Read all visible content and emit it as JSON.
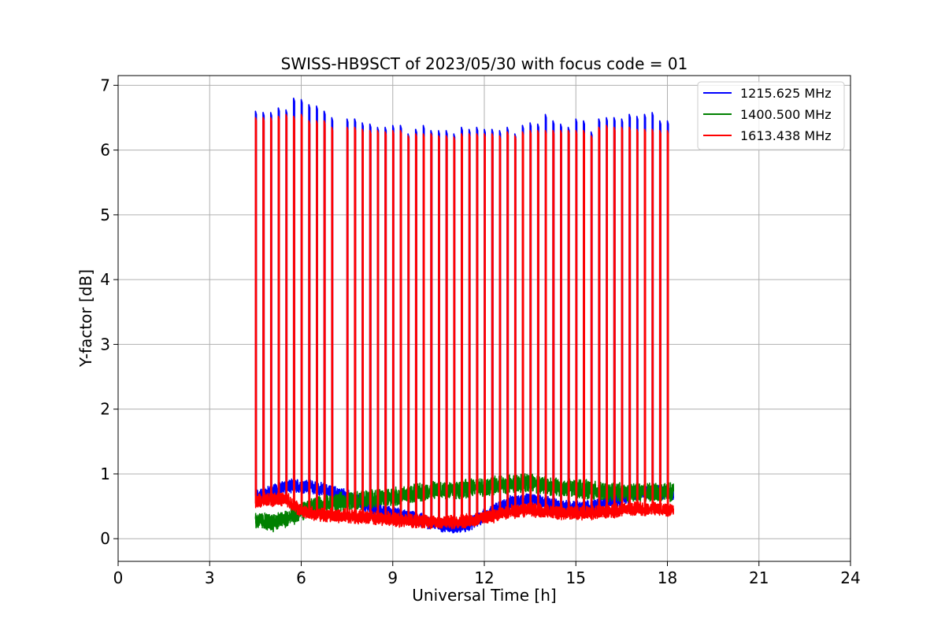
{
  "chart_data": {
    "type": "line",
    "title": "SWISS-HB9SCT of 2023/05/30 with focus code = 01",
    "xlabel": "Universal Time [h]",
    "ylabel": "Y-factor [dB]",
    "xlim": [
      0,
      24
    ],
    "ylim": [
      -0.35,
      7.15
    ],
    "xticks": [
      0,
      3,
      6,
      9,
      12,
      15,
      18,
      21,
      24
    ],
    "xtick_labels": [
      "0",
      "3",
      "6",
      "9",
      "12",
      "15",
      "18",
      "21",
      "24"
    ],
    "yticks": [
      0,
      1,
      2,
      3,
      4,
      5,
      6,
      7
    ],
    "ytick_labels": [
      "0",
      "1",
      "2",
      "3",
      "4",
      "5",
      "6",
      "7"
    ],
    "grid": true,
    "legend_position": "top-right",
    "series": [
      {
        "name": "1215.625 MHz",
        "color": "#0000ff",
        "x": [
          4.5,
          5.0,
          5.5,
          6.0,
          6.5,
          7.0,
          7.5,
          8.0,
          8.5,
          9.0,
          9.5,
          10.0,
          10.5,
          11.0,
          11.5,
          12.0,
          12.5,
          13.0,
          13.5,
          14.0,
          14.5,
          15.0,
          15.5,
          16.0,
          16.5,
          17.0,
          17.5,
          18.0,
          18.2
        ],
        "y": [
          0.65,
          0.72,
          0.8,
          0.82,
          0.78,
          0.72,
          0.65,
          0.55,
          0.45,
          0.38,
          0.33,
          0.28,
          0.22,
          0.18,
          0.22,
          0.35,
          0.48,
          0.58,
          0.6,
          0.55,
          0.5,
          0.48,
          0.5,
          0.55,
          0.62,
          0.7,
          0.72,
          0.72,
          0.7
        ]
      },
      {
        "name": "1400.500 MHz",
        "color": "#008000",
        "x": [
          4.5,
          5.0,
          5.5,
          6.0,
          6.5,
          7.0,
          7.5,
          8.0,
          8.5,
          9.0,
          9.5,
          10.0,
          10.5,
          11.0,
          11.5,
          12.0,
          12.5,
          13.0,
          13.5,
          14.0,
          14.5,
          15.0,
          15.5,
          16.0,
          16.5,
          17.0,
          17.5,
          18.0,
          18.2
        ],
        "y": [
          0.28,
          0.25,
          0.3,
          0.42,
          0.5,
          0.55,
          0.58,
          0.6,
          0.62,
          0.65,
          0.68,
          0.72,
          0.75,
          0.75,
          0.78,
          0.8,
          0.82,
          0.85,
          0.88,
          0.82,
          0.78,
          0.78,
          0.75,
          0.72,
          0.72,
          0.72,
          0.72,
          0.72,
          0.72
        ]
      },
      {
        "name": "1613.438 MHz",
        "color": "#ff0000",
        "x": [
          4.5,
          5.0,
          5.5,
          6.0,
          6.5,
          7.0,
          7.5,
          8.0,
          8.5,
          9.0,
          9.5,
          10.0,
          10.5,
          11.0,
          11.5,
          12.0,
          12.5,
          13.0,
          13.5,
          14.0,
          14.5,
          15.0,
          15.5,
          16.0,
          16.5,
          17.0,
          17.5,
          18.0,
          18.2
        ],
        "y": [
          0.58,
          0.6,
          0.62,
          0.42,
          0.38,
          0.36,
          0.35,
          0.33,
          0.32,
          0.3,
          0.28,
          0.27,
          0.25,
          0.26,
          0.28,
          0.32,
          0.38,
          0.42,
          0.45,
          0.42,
          0.4,
          0.4,
          0.4,
          0.42,
          0.45,
          0.46,
          0.46,
          0.45,
          0.44
        ]
      }
    ],
    "spikes": {
      "times": [
        4.5,
        4.75,
        5.0,
        5.25,
        5.5,
        5.75,
        6.0,
        6.25,
        6.5,
        6.75,
        7.0,
        7.5,
        7.75,
        8.0,
        8.25,
        8.5,
        8.75,
        9.0,
        9.25,
        9.5,
        9.75,
        10.0,
        10.25,
        10.5,
        10.75,
        11.0,
        11.25,
        11.5,
        11.75,
        12.0,
        12.25,
        12.5,
        12.75,
        13.0,
        13.25,
        13.5,
        13.75,
        14.0,
        14.25,
        14.5,
        14.75,
        15.0,
        15.25,
        15.5,
        15.75,
        16.0,
        16.25,
        16.5,
        16.75,
        17.0,
        17.25,
        17.5,
        17.75,
        18.0
      ],
      "peaks_1215": [
        6.6,
        6.58,
        6.58,
        6.65,
        6.62,
        6.8,
        6.78,
        6.7,
        6.68,
        6.6,
        6.5,
        6.48,
        6.48,
        6.42,
        6.4,
        6.35,
        6.35,
        6.38,
        6.38,
        6.25,
        6.32,
        6.38,
        6.3,
        6.3,
        6.3,
        6.25,
        6.35,
        6.32,
        6.35,
        6.32,
        6.32,
        6.3,
        6.35,
        6.25,
        6.38,
        6.42,
        6.4,
        6.55,
        6.45,
        6.4,
        6.35,
        6.48,
        6.45,
        6.28,
        6.48,
        6.5,
        6.5,
        6.48,
        6.55,
        6.52,
        6.55,
        6.58,
        6.45,
        6.45
      ],
      "peaks_1613": [
        6.5,
        6.5,
        6.5,
        6.52,
        6.55,
        6.52,
        6.55,
        6.45,
        6.45,
        6.45,
        6.35,
        6.35,
        6.35,
        6.32,
        6.3,
        6.3,
        6.28,
        6.3,
        6.3,
        6.22,
        6.25,
        6.25,
        6.25,
        6.22,
        6.22,
        6.2,
        6.25,
        6.25,
        6.25,
        6.25,
        6.25,
        6.22,
        6.28,
        6.22,
        6.28,
        6.3,
        6.3,
        6.3,
        6.3,
        6.3,
        6.3,
        6.3,
        6.3,
        6.22,
        6.35,
        6.38,
        6.35,
        6.35,
        6.35,
        6.32,
        6.32,
        6.32,
        6.3,
        6.3
      ]
    }
  }
}
